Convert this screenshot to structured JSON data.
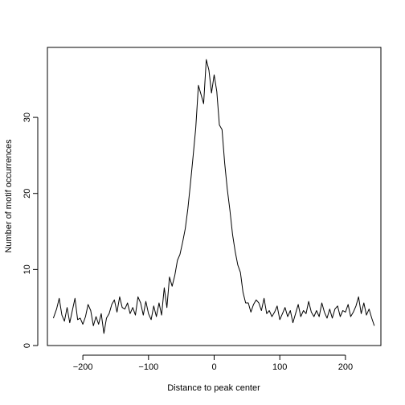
{
  "chart_data": {
    "type": "line",
    "title": "",
    "xlabel": "Distance to peak center",
    "ylabel": "Number of motif occurrences",
    "xlim": [
      -254,
      254
    ],
    "ylim": [
      0,
      39.2
    ],
    "x_ticks": [
      -200,
      -100,
      0,
      100,
      200
    ],
    "x_tick_labels": [
      "−200",
      "−100",
      "0",
      "100",
      "200"
    ],
    "y_ticks": [
      0,
      10,
      20,
      30
    ],
    "y_tick_labels": [
      "0",
      "10",
      "20",
      "30"
    ],
    "grid": false,
    "legend": "none",
    "line_color": "#000000",
    "series": [
      {
        "x": [
          -245,
          -240,
          -236,
          -232,
          -228,
          -224,
          -220,
          -216,
          -212,
          -208,
          -204,
          -200,
          -196,
          -192,
          -188,
          -184,
          -180,
          -176,
          -172,
          -168,
          -164,
          -160,
          -156,
          -152,
          -148,
          -144,
          -140,
          -136,
          -132,
          -128,
          -124,
          -120,
          -116,
          -112,
          -108,
          -104,
          -100,
          -96,
          -92,
          -88,
          -84,
          -80,
          -76,
          -72,
          -68,
          -64,
          -60,
          -56,
          -52,
          -48,
          -44,
          -40,
          -36,
          -32,
          -28,
          -24,
          -20,
          -16,
          -12,
          -8,
          -4,
          0,
          4,
          8,
          12,
          16,
          20,
          24,
          28,
          32,
          36,
          40,
          44,
          48,
          52,
          56,
          60,
          64,
          68,
          72,
          76,
          80,
          84,
          88,
          92,
          96,
          100,
          104,
          108,
          112,
          116,
          120,
          124,
          128,
          132,
          136,
          140,
          144,
          148,
          152,
          156,
          160,
          164,
          168,
          172,
          176,
          180,
          184,
          188,
          192,
          196,
          200,
          204,
          208,
          212,
          216,
          220,
          224,
          228,
          232,
          236,
          240,
          244
        ],
        "values": [
          3.6,
          4.8,
          6.2,
          4.0,
          3.2,
          5.0,
          3.0,
          4.6,
          6.2,
          3.4,
          3.6,
          2.8,
          3.8,
          5.4,
          4.6,
          2.6,
          3.8,
          2.8,
          4.2,
          1.6,
          3.6,
          4.2,
          5.4,
          6.0,
          4.4,
          6.4,
          5.0,
          4.8,
          5.6,
          4.2,
          5.0,
          4.0,
          6.4,
          5.6,
          4.0,
          5.8,
          4.2,
          3.4,
          5.2,
          3.8,
          5.6,
          4.0,
          7.6,
          5.0,
          9.0,
          7.8,
          9.2,
          11.2,
          12.0,
          13.6,
          15.4,
          18.0,
          21.4,
          25.0,
          28.6,
          34.2,
          33.0,
          31.8,
          37.6,
          36.2,
          33.2,
          35.6,
          33.4,
          29.0,
          28.4,
          24.0,
          20.6,
          17.8,
          14.6,
          12.4,
          10.6,
          9.6,
          7.0,
          5.6,
          5.6,
          4.4,
          5.4,
          6.0,
          5.6,
          4.6,
          6.2,
          4.2,
          4.6,
          3.8,
          4.4,
          5.2,
          3.4,
          4.2,
          5.0,
          3.8,
          4.6,
          3.0,
          4.2,
          5.4,
          3.8,
          4.6,
          4.2,
          5.8,
          4.4,
          3.8,
          4.6,
          3.8,
          5.6,
          4.4,
          3.6,
          4.8,
          3.6,
          4.8,
          5.2,
          3.8,
          4.6,
          4.4,
          5.4,
          3.8,
          4.4,
          5.2,
          6.4,
          4.2,
          5.6,
          4.0,
          4.8,
          3.6,
          2.6
        ]
      }
    ]
  }
}
